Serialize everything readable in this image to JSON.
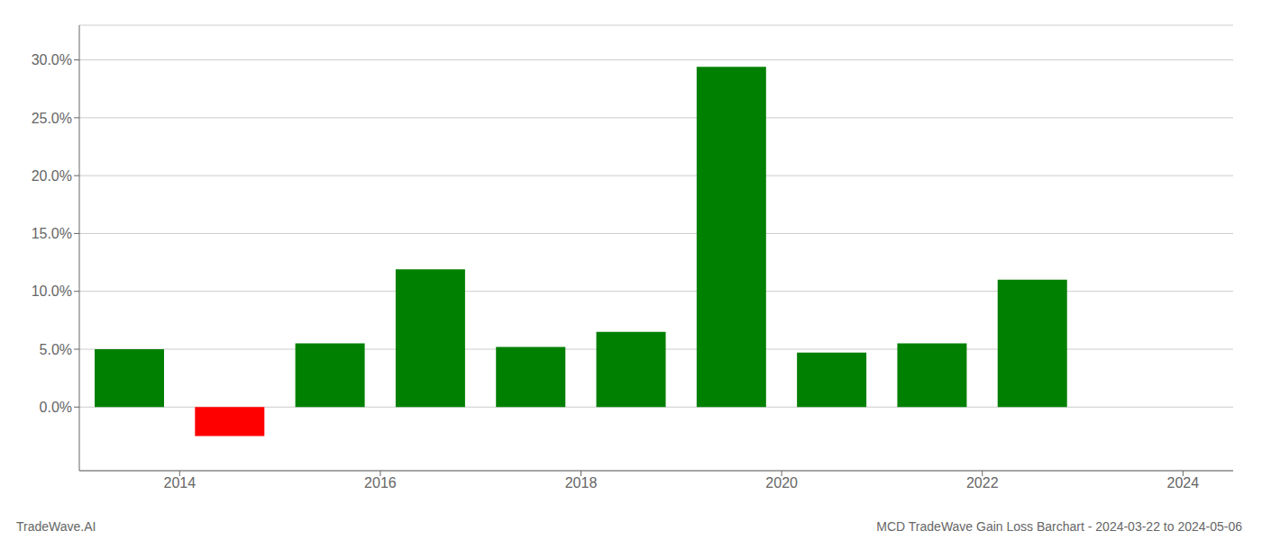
{
  "chart_data": {
    "type": "bar",
    "title": "MCD TradeWave Gain Loss Barchart - 2024-03-22 to 2024-05-06",
    "annotations": [
      "TradeWave.AI"
    ],
    "x": [
      2013.5,
      2014.5,
      2015.5,
      2016.5,
      2017.5,
      2018.5,
      2019.5,
      2020.5,
      2021.5,
      2022.5
    ],
    "values": [
      0.05,
      -0.025,
      0.055,
      0.119,
      0.052,
      0.065,
      0.294,
      0.047,
      0.055,
      0.11
    ],
    "colors": [
      "#008000",
      "#ff0000",
      "#008000",
      "#008000",
      "#008000",
      "#008000",
      "#008000",
      "#008000",
      "#008000",
      "#008000"
    ],
    "xlim": [
      2013.0,
      2024.5
    ],
    "xticks": [
      2014,
      2016,
      2018,
      2020,
      2022,
      2024
    ],
    "ylim": [
      -0.055,
      0.33
    ],
    "yticks": [
      {
        "value": 0.0,
        "label": "0.0%"
      },
      {
        "value": 0.05,
        "label": "5.0%"
      },
      {
        "value": 0.1,
        "label": "10.0%"
      },
      {
        "value": 0.15,
        "label": "15.0%"
      },
      {
        "value": 0.2,
        "label": "20.0%"
      },
      {
        "value": 0.25,
        "label": "25.0%"
      },
      {
        "value": 0.3,
        "label": "30.0%"
      }
    ],
    "grid": true
  }
}
